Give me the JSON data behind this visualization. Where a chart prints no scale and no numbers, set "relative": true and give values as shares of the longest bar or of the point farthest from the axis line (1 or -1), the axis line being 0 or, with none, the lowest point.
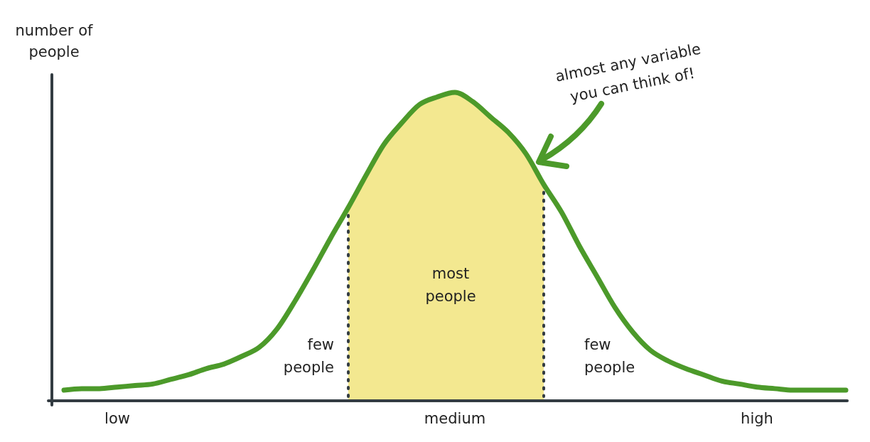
{
  "chart_data": {
    "type": "line",
    "relative": true,
    "ylabel": "number of people",
    "categories": [
      null,
      null,
      null,
      "low",
      null,
      null,
      null,
      null,
      null,
      null,
      null,
      null,
      null,
      null,
      null,
      null,
      null,
      null,
      null,
      null,
      null,
      null,
      "medium",
      null,
      null,
      null,
      null,
      null,
      null,
      null,
      null,
      null,
      null,
      null,
      null,
      null,
      null,
      null,
      null,
      "high",
      null,
      null,
      null,
      null,
      null
    ],
    "series": [
      {
        "type": "area",
        "color": "#f3e890",
        "line_style": "dotted",
        "values": [
          null,
          null,
          null,
          null,
          null,
          null,
          null,
          null,
          null,
          null,
          null,
          null,
          null,
          null,
          null,
          null,
          0.625,
          0.73,
          0.83,
          0.9,
          0.96,
          0.985,
          1,
          0.97,
          0.92,
          0.87,
          0.8,
          0.7,
          null,
          null,
          null,
          null,
          null,
          null,
          null,
          null,
          null,
          null,
          null,
          null,
          null,
          null,
          null,
          null,
          null
        ]
      },
      {
        "color": "#4c9a2a",
        "values": [
          0.03,
          0.035,
          0.035,
          0.04,
          0.045,
          0.05,
          0.065,
          0.08,
          0.1,
          0.115,
          0.14,
          0.17,
          0.23,
          0.32,
          0.42,
          0.525,
          0.625,
          0.73,
          0.83,
          0.9,
          0.96,
          0.985,
          1,
          0.97,
          0.92,
          0.87,
          0.8,
          0.7,
          0.61,
          0.5,
          0.4,
          0.3,
          0.22,
          0.16,
          0.125,
          0.1,
          0.08,
          0.06,
          0.05,
          0.04,
          0.035,
          0.03,
          0.03,
          0.03,
          0.03
        ]
      }
    ],
    "annotations": [
      "few\npeople",
      "most\npeople",
      "few\npeople",
      "almost any variable\nyou can think of!"
    ]
  }
}
